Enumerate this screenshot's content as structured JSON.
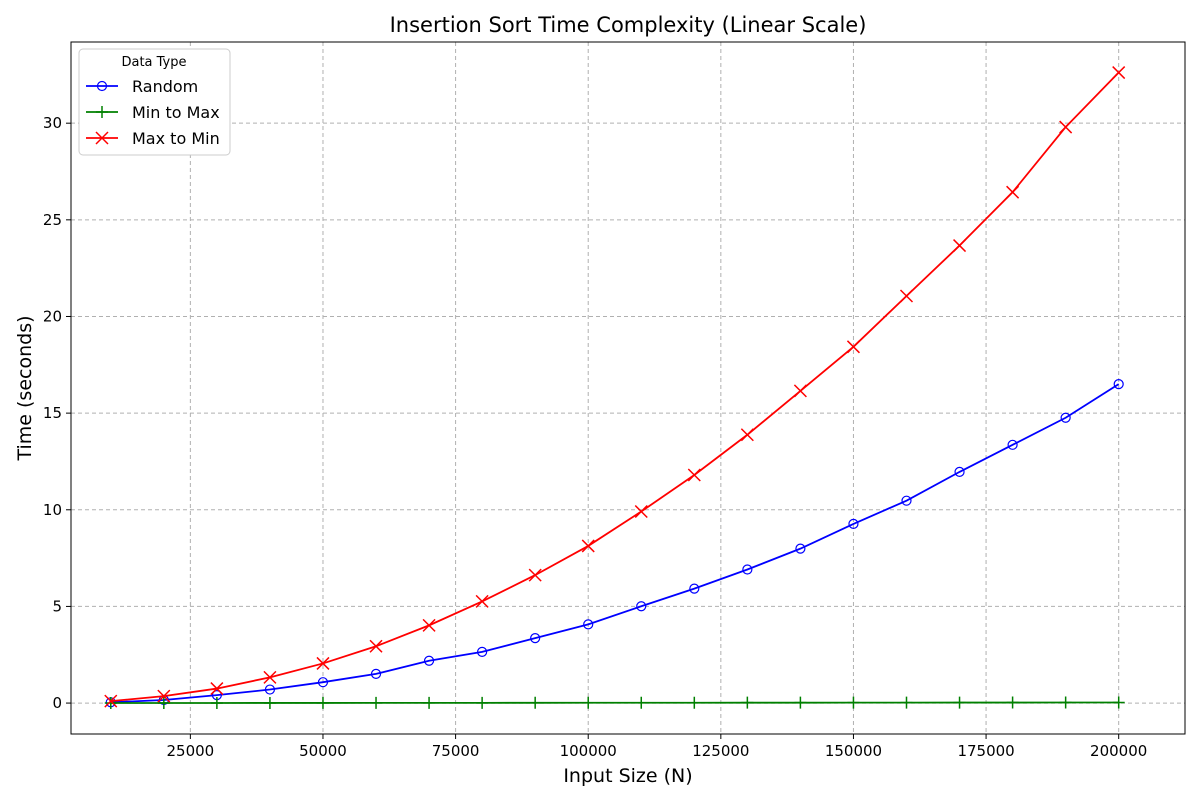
{
  "chart_data": {
    "type": "line",
    "title": "Insertion Sort Time Complexity (Linear Scale)",
    "xlabel": "Input Size (N)",
    "ylabel": "Time (seconds)",
    "x": [
      10000,
      20000,
      30000,
      40000,
      50000,
      60000,
      70000,
      80000,
      90000,
      100000,
      110000,
      120000,
      130000,
      140000,
      150000,
      160000,
      170000,
      180000,
      190000,
      200000
    ],
    "xlim": [
      2500,
      212500
    ],
    "ylim": [
      -1.6,
      34.2
    ],
    "xticks": [
      25000,
      50000,
      75000,
      100000,
      125000,
      150000,
      175000,
      200000
    ],
    "yticks": [
      0,
      5,
      10,
      15,
      20,
      25,
      30
    ],
    "grid": true,
    "legend": {
      "title": "Data Type",
      "placement": "top-left"
    },
    "series": [
      {
        "name": "Random",
        "color": "#0000ff",
        "marker": "circle-open",
        "values": [
          0.04,
          0.16,
          0.41,
          0.7,
          1.08,
          1.51,
          2.19,
          2.65,
          3.36,
          4.07,
          5.01,
          5.92,
          6.91,
          7.99,
          9.27,
          10.47,
          11.96,
          13.36,
          14.76,
          16.5
        ]
      },
      {
        "name": "Min to Max",
        "color": "#008000",
        "marker": "plus",
        "values": [
          0.002,
          0.003,
          0.005,
          0.006,
          0.008,
          0.009,
          0.011,
          0.012,
          0.014,
          0.015,
          0.017,
          0.018,
          0.02,
          0.021,
          0.023,
          0.024,
          0.026,
          0.027,
          0.029,
          0.03
        ]
      },
      {
        "name": "Max to Min",
        "color": "#ff0000",
        "marker": "x",
        "values": [
          0.1,
          0.36,
          0.75,
          1.33,
          2.05,
          2.94,
          4.02,
          5.26,
          6.62,
          8.13,
          9.91,
          11.8,
          13.88,
          16.15,
          18.43,
          21.06,
          23.67,
          26.43,
          29.8,
          32.62
        ]
      }
    ]
  }
}
